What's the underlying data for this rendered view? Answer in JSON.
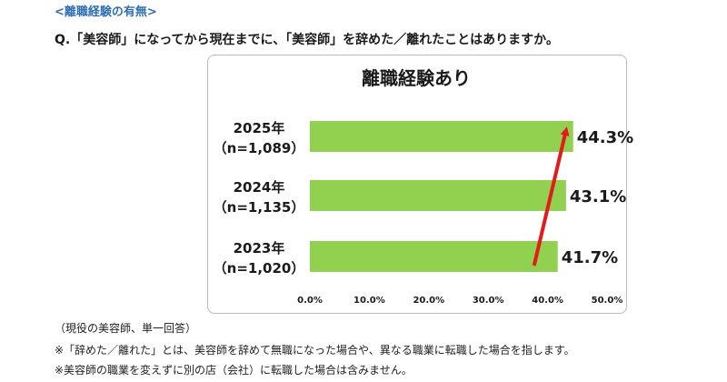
{
  "section_label": "<離職経験の有無>",
  "question": "Q.「美容師」になってから現在までに、「美容師」を辞めた／離れたことはありますか。",
  "notes": [
    "（現役の美容師、単一回答）",
    "※「辞めた／離れた」とは、美容師を辞めて無職になった場合や、異なる職業に転職した場合を指します。",
    "※美容師の職業を変えずに別の店（会社）に転職した場合は含みません。"
  ],
  "colors": {
    "bar": "#92d050",
    "arrow": "#e31b1b",
    "section_label": "#2f6fb3"
  },
  "chart_data": {
    "type": "bar",
    "orientation": "horizontal",
    "title": "離職経験あり",
    "categories": [
      {
        "line1": "2025年",
        "line2": "（n=1,089）"
      },
      {
        "line1": "2024年",
        "line2": "（n=1,135）"
      },
      {
        "line1": "2023年",
        "line2": "（n=1,020）"
      }
    ],
    "values": [
      44.3,
      43.1,
      41.7
    ],
    "value_labels": [
      "44.3%",
      "43.1%",
      "41.7%"
    ],
    "xlim": [
      0,
      50
    ],
    "xticks": [
      "0.0%",
      "10.0%",
      "20.0%",
      "30.0%",
      "40.0%",
      "50.0%"
    ],
    "grid": false,
    "annotation": "red upward arrow from 2023 bar end to 2025 bar end"
  }
}
